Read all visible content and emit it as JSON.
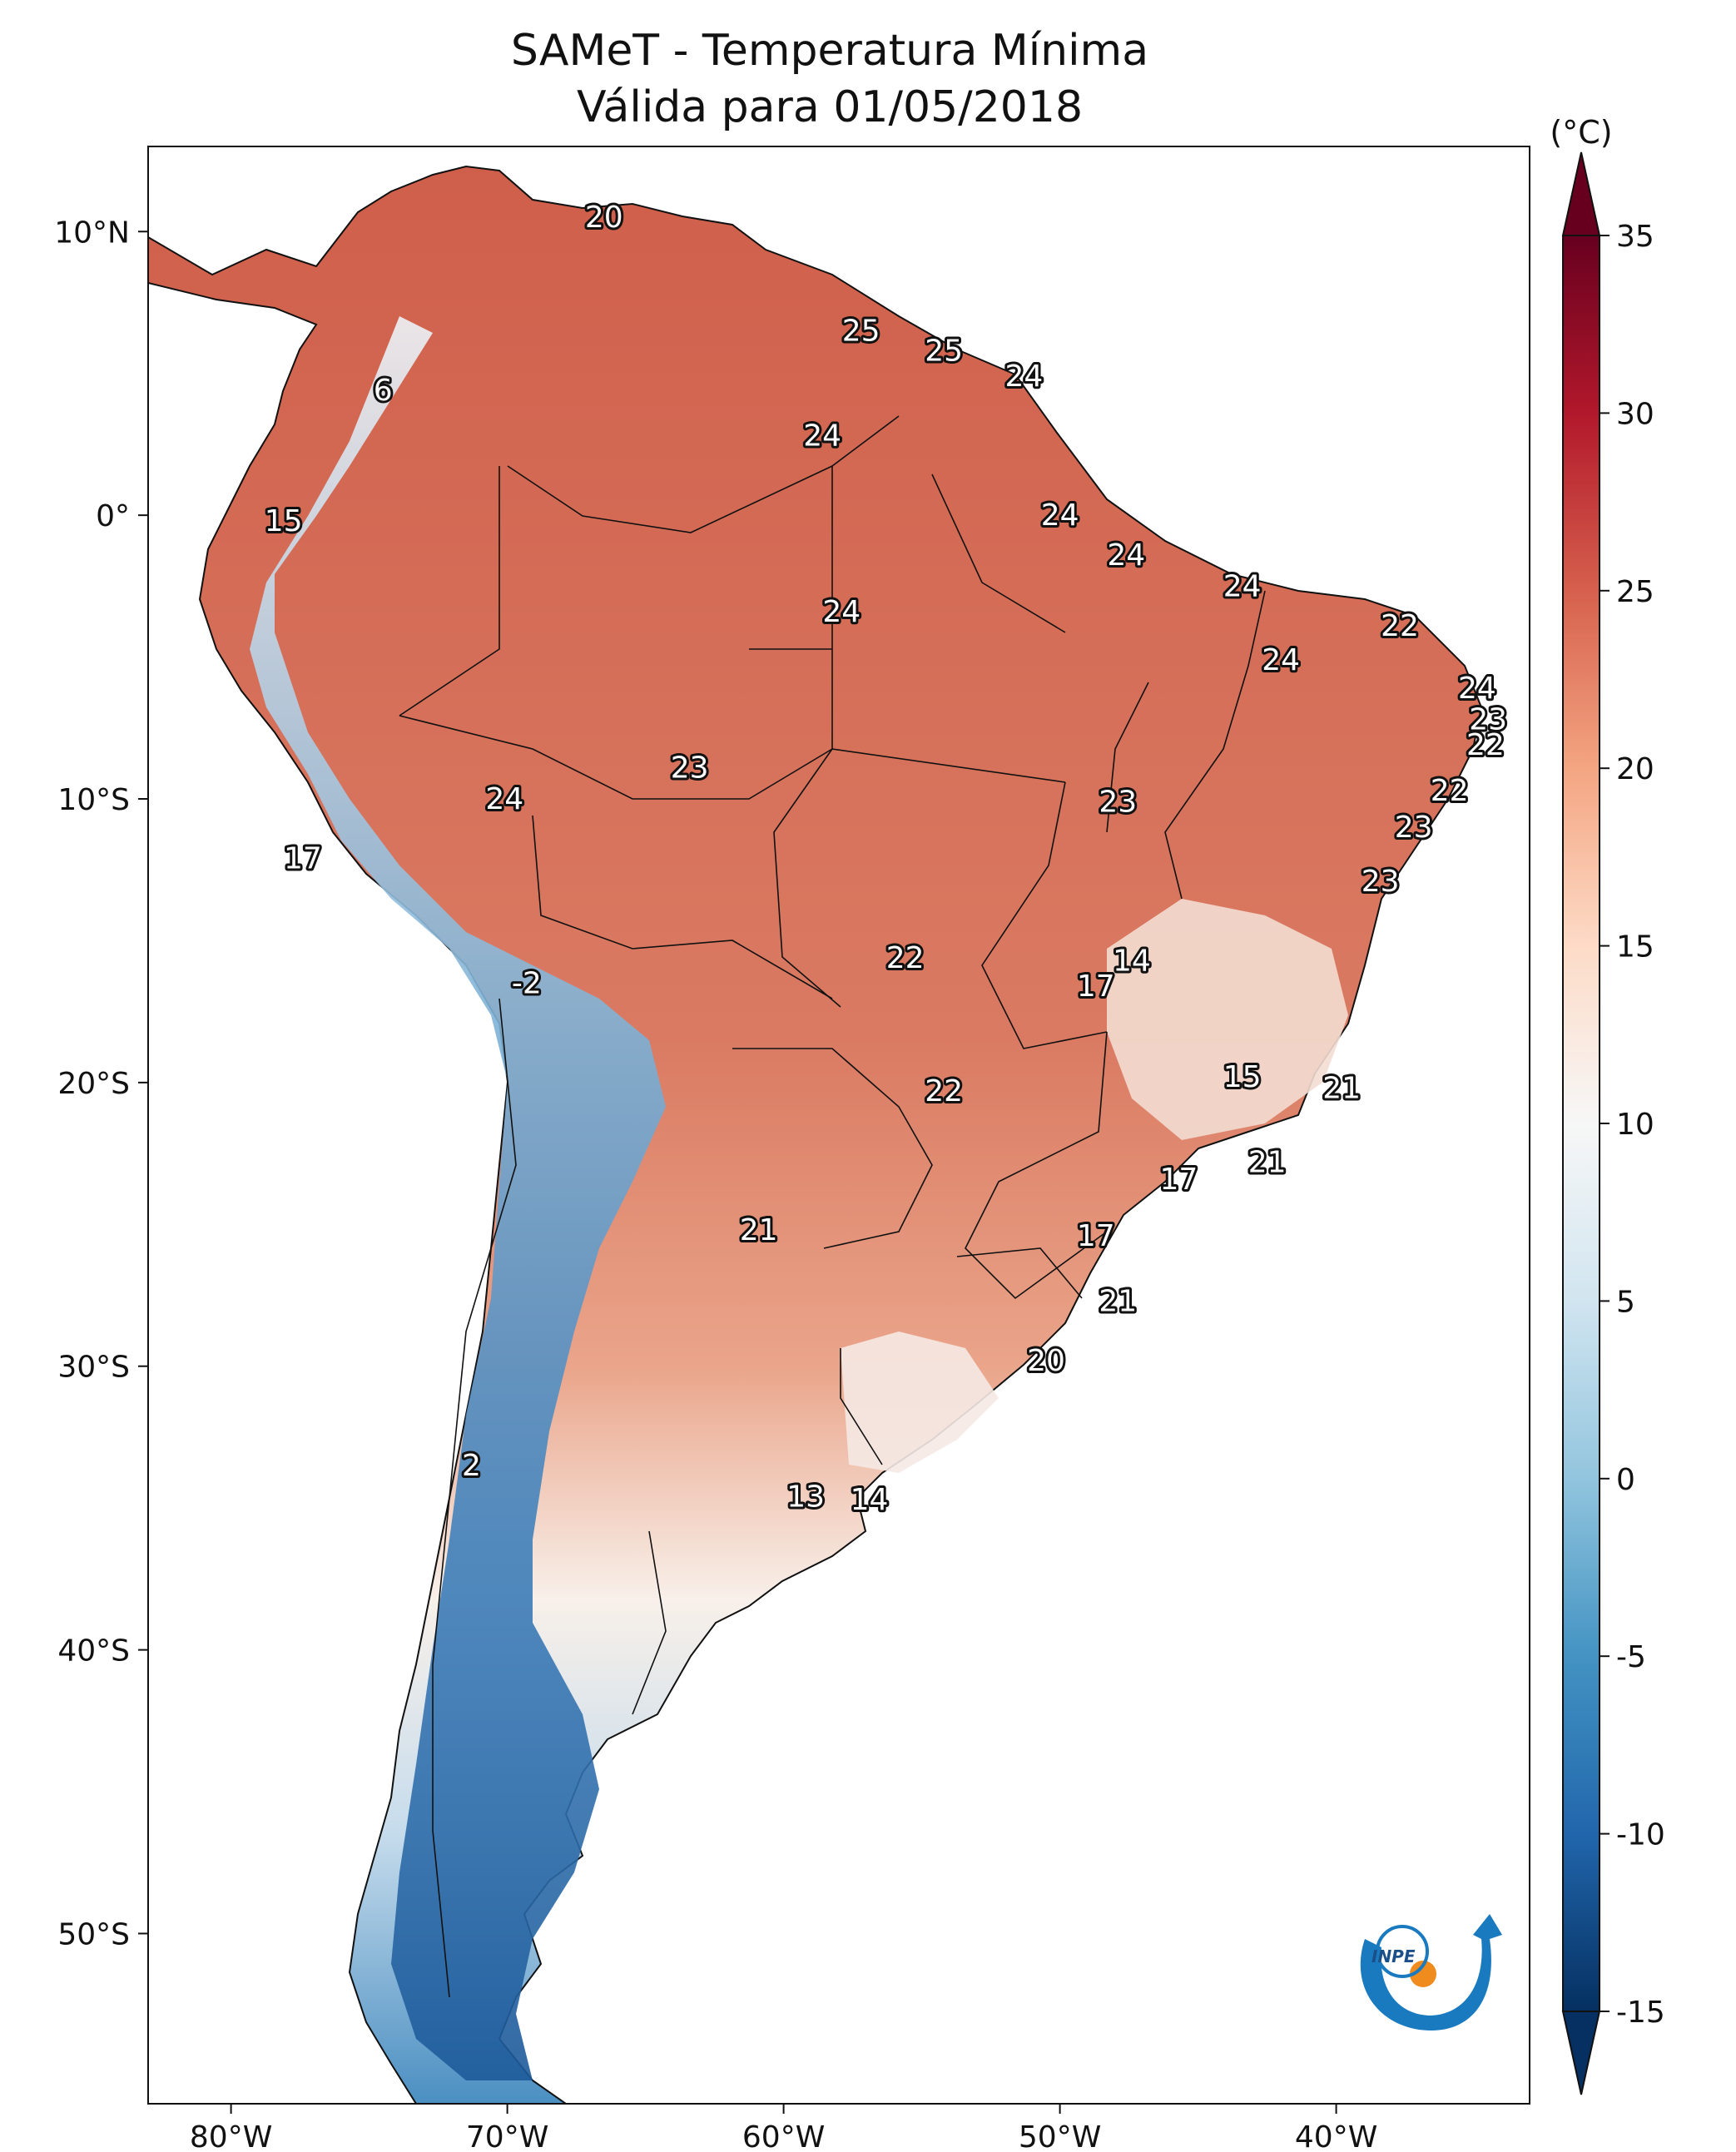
{
  "title": {
    "line1": "SAMeT - Temperatura Mínima",
    "line2": "Válida para 01/05/2018"
  },
  "lon_ticks": [
    "80°W",
    "70°W",
    "60°W",
    "50°W",
    "40°W"
  ],
  "lat_ticks": [
    "10°N",
    "0°",
    "10°S",
    "20°S",
    "30°S",
    "40°S",
    "50°S"
  ],
  "colorbar": {
    "unit": "(°C)",
    "min": -15,
    "max": 35,
    "ticks": [
      "35",
      "30",
      "25",
      "20",
      "15",
      "10",
      "5",
      "0",
      "-5",
      "-10",
      "-15"
    ],
    "extend": "both",
    "colors": [
      "#053061",
      "#2166ac",
      "#4393c3",
      "#92c5de",
      "#d1e5f0",
      "#f7f7f7",
      "#fddbc7",
      "#f4a582",
      "#d6604d",
      "#b2182b",
      "#67001f"
    ]
  },
  "map": {
    "extent": {
      "lon_min": -83,
      "lon_max": -33,
      "lat_min": -56,
      "lat_max": 13
    },
    "labels": [
      {
        "text": "20",
        "lon": -66.5,
        "lat": 10.5
      },
      {
        "text": "25",
        "lon": -57.2,
        "lat": 6.5
      },
      {
        "text": "25",
        "lon": -54.2,
        "lat": 5.8
      },
      {
        "text": "24",
        "lon": -51.3,
        "lat": 4.9
      },
      {
        "text": "6",
        "lon": -74.5,
        "lat": 4.4
      },
      {
        "text": "24",
        "lon": -58.6,
        "lat": 2.8
      },
      {
        "text": "15",
        "lon": -78.1,
        "lat": -0.2
      },
      {
        "text": "24",
        "lon": -50.0,
        "lat": 0.0
      },
      {
        "text": "24",
        "lon": -47.6,
        "lat": -1.4
      },
      {
        "text": "24",
        "lon": -43.4,
        "lat": -2.5
      },
      {
        "text": "24",
        "lon": -57.9,
        "lat": -3.4
      },
      {
        "text": "22",
        "lon": -37.7,
        "lat": -3.9
      },
      {
        "text": "24",
        "lon": -42.0,
        "lat": -5.1
      },
      {
        "text": "24",
        "lon": -34.9,
        "lat": -6.1
      },
      {
        "text": "23",
        "lon": -34.5,
        "lat": -7.2
      },
      {
        "text": "22",
        "lon": -34.6,
        "lat": -8.1
      },
      {
        "text": "23",
        "lon": -63.4,
        "lat": -8.9
      },
      {
        "text": "22",
        "lon": -35.9,
        "lat": -9.7
      },
      {
        "text": "24",
        "lon": -70.1,
        "lat": -10.0
      },
      {
        "text": "23",
        "lon": -47.9,
        "lat": -10.1
      },
      {
        "text": "23",
        "lon": -37.2,
        "lat": -11.0
      },
      {
        "text": "17",
        "lon": -77.4,
        "lat": -12.1
      },
      {
        "text": "23",
        "lon": -38.4,
        "lat": -12.9
      },
      {
        "text": "22",
        "lon": -55.6,
        "lat": -15.6
      },
      {
        "text": "14",
        "lon": -47.4,
        "lat": -15.7
      },
      {
        "text": "17",
        "lon": -48.7,
        "lat": -16.6
      },
      {
        "text": "-2",
        "lon": -69.3,
        "lat": -16.5
      },
      {
        "text": "15",
        "lon": -43.4,
        "lat": -19.8
      },
      {
        "text": "21",
        "lon": -39.8,
        "lat": -20.2
      },
      {
        "text": "22",
        "lon": -54.2,
        "lat": -20.3
      },
      {
        "text": "21",
        "lon": -42.5,
        "lat": -22.8
      },
      {
        "text": "17",
        "lon": -45.7,
        "lat": -23.4
      },
      {
        "text": "21",
        "lon": -60.9,
        "lat": -25.2
      },
      {
        "text": "17",
        "lon": -48.7,
        "lat": -25.4
      },
      {
        "text": "21",
        "lon": -47.9,
        "lat": -27.7
      },
      {
        "text": "20",
        "lon": -50.5,
        "lat": -29.8
      },
      {
        "text": "2",
        "lon": -71.3,
        "lat": -33.5
      },
      {
        "text": "13",
        "lon": -59.2,
        "lat": -34.6
      },
      {
        "text": "14",
        "lon": -56.9,
        "lat": -34.7
      }
    ]
  }
}
